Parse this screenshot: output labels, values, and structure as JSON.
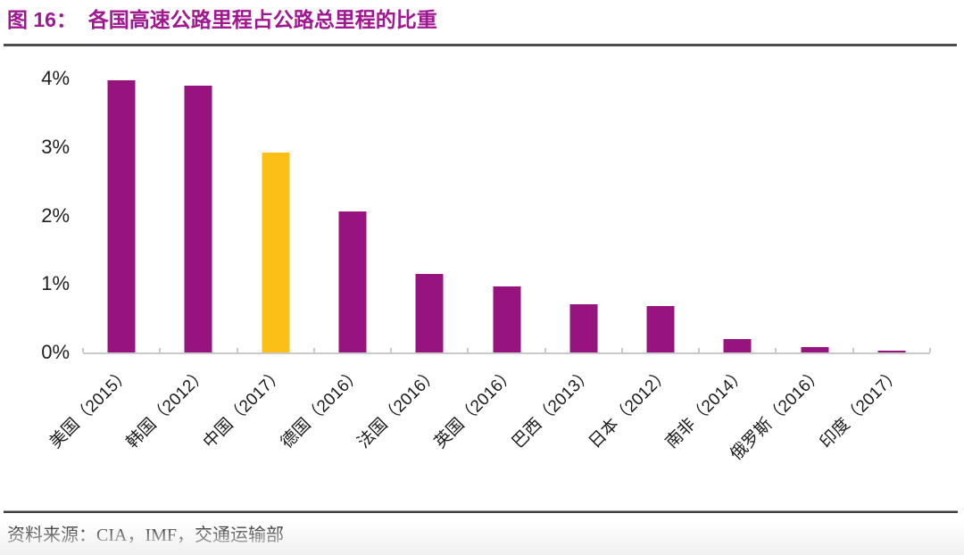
{
  "header": {
    "title": "图 16：  各国高速公路里程占公路总里程的比重"
  },
  "footer": {
    "source": "资料来源：CIA，IMF，交通运输部"
  },
  "colors": {
    "title": "#A01890",
    "bar": "#97137F",
    "highlight": "#FCBF16",
    "axis": "#C9C9C9",
    "divider": "#4B4B4B",
    "text": "#1A1A1A"
  },
  "chart_data": {
    "type": "bar",
    "title": "各国高速公路里程占公路总里程的比重",
    "categories": [
      "美国（2015）",
      "韩国（2012）",
      "中国（2017）",
      "德国（2016）",
      "法国（2016）",
      "英国（2016）",
      "巴西（2013）",
      "日本（2012）",
      "南非（2014）",
      "俄罗斯（2016）",
      "印度（2017）"
    ],
    "values": [
      3.97,
      3.9,
      2.92,
      2.06,
      1.15,
      0.96,
      0.7,
      0.68,
      0.2,
      0.08,
      0.03
    ],
    "unit": "%",
    "highlight_index": 2,
    "bar_color": "#97137F",
    "highlight_color": "#FCBF16",
    "ylim": [
      0,
      4
    ],
    "y_ticks": [
      "0%",
      "1%",
      "2%",
      "3%",
      "4%"
    ],
    "x_label_rotation": -45,
    "grid": false,
    "legend": false
  }
}
